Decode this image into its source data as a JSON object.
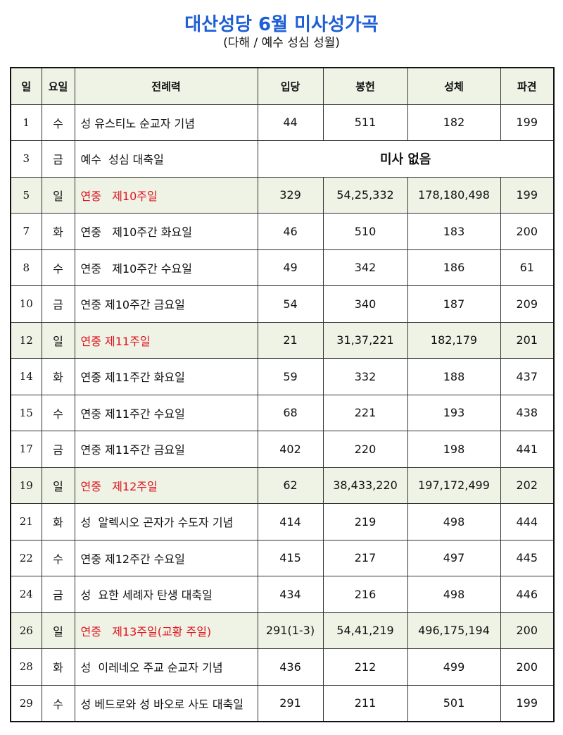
{
  "header": {
    "title": "대산성당 6월 미사성가곡",
    "subtitle": "(다해 / 예수 성심 성월)"
  },
  "table": {
    "columns": [
      "일",
      "요일",
      "전례력",
      "입당",
      "봉헌",
      "성체",
      "파견"
    ],
    "rows": [
      {
        "cells": [
          "1",
          "수",
          "성 유스티노 순교자 기념",
          "44",
          "511",
          "182",
          "199"
        ]
      },
      {
        "cells": [
          "3",
          "금",
          "예수  성심 대축일",
          "미사 없음"
        ]
      },
      {
        "cells": [
          "5",
          "일",
          "연중   제10주일",
          "329",
          "54,25,332",
          "178,180,498",
          "199"
        ],
        "highlight": true
      },
      {
        "cells": [
          "7",
          "화",
          "연중   제10주간 화요일",
          "46",
          "510",
          "183",
          "200"
        ]
      },
      {
        "cells": [
          "8",
          "수",
          "연중   제10주간 수요일",
          "49",
          "342",
          "186",
          "61"
        ]
      },
      {
        "cells": [
          "10",
          "금",
          "연중 제10주간 금요일",
          "54",
          "340",
          "187",
          "209"
        ]
      },
      {
        "cells": [
          "12",
          "일",
          "연중 제11주일",
          "21",
          "31,37,221",
          "182,179",
          "201"
        ],
        "highlight": true
      },
      {
        "cells": [
          "14",
          "화",
          "연중 제11주간 화요일",
          "59",
          "332",
          "188",
          "437"
        ]
      },
      {
        "cells": [
          "15",
          "수",
          "연중 제11주간 수요일",
          "68",
          "221",
          "193",
          "438"
        ]
      },
      {
        "cells": [
          "17",
          "금",
          "연중 제11주간 금요일",
          "402",
          "220",
          "198",
          "441"
        ]
      },
      {
        "cells": [
          "19",
          "일",
          "연중   제12주일",
          "62",
          "38,433,220",
          "197,172,499",
          "202"
        ],
        "highlight": true
      },
      {
        "cells": [
          "21",
          "화",
          "성  알렉시오 곤자가 수도자 기념",
          "414",
          "219",
          "498",
          "444"
        ]
      },
      {
        "cells": [
          "22",
          "수",
          "연중 제12주간 수요일",
          "415",
          "217",
          "497",
          "445"
        ]
      },
      {
        "cells": [
          "24",
          "금",
          "성  요한 세례자 탄생 대축일",
          "434",
          "216",
          "498",
          "446"
        ]
      },
      {
        "cells": [
          "26",
          "일",
          "연중   제13주일(교황 주일)",
          "291(1-3)",
          "54,41,219",
          "496,175,194",
          "200"
        ],
        "highlight": true
      },
      {
        "cells": [
          "28",
          "화",
          "성  이레네오 주교 순교자 기념",
          "436",
          "212",
          "499",
          "200"
        ]
      },
      {
        "cells": [
          "29",
          "수",
          "성 베드로와 성 바오로 사도 대축일",
          "291",
          "211",
          "501",
          "199"
        ]
      }
    ]
  }
}
